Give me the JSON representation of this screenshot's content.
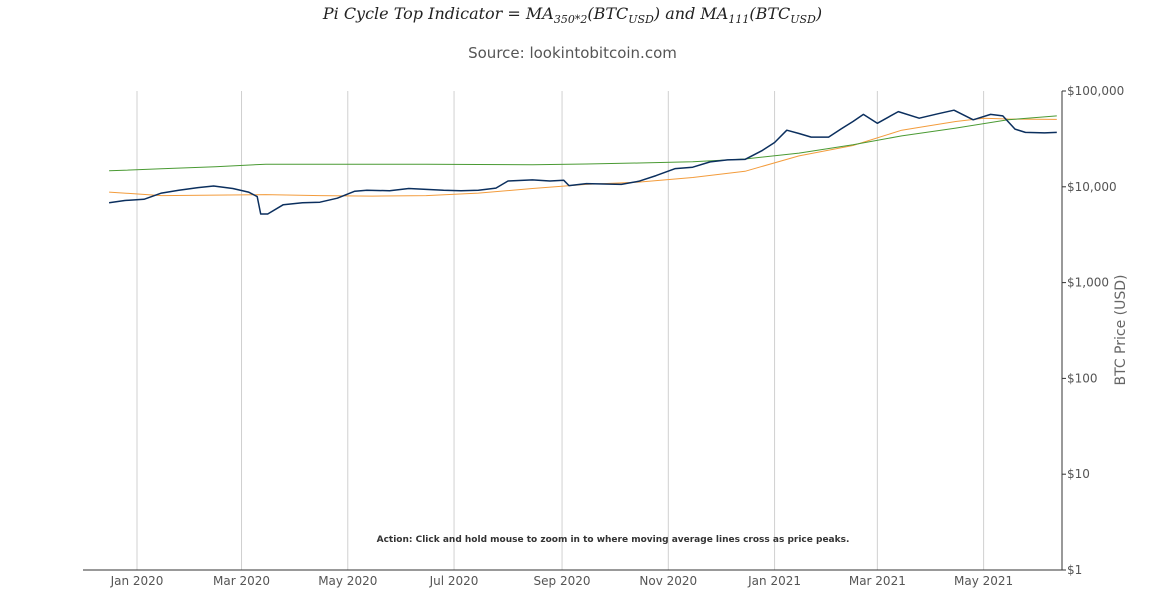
{
  "header": {
    "title_prefix": "Pi Cycle Top Indicator = MA",
    "title_sub1": "350*2",
    "title_mid1": "(BTC",
    "title_sub2": "USD",
    "title_mid2": ") and MA",
    "title_sub3": "111",
    "title_mid3": "(BTC",
    "title_sub4": "USD",
    "title_suffix": ")",
    "subtitle": "Source: lookintobitcoin.com"
  },
  "chart_data": {
    "type": "line",
    "ylabel": "BTC Price (USD)",
    "yscale": "log",
    "ylim": [
      1,
      100000
    ],
    "ytick_values": [
      1,
      10,
      100,
      1000,
      10000,
      100000
    ],
    "ytick_labels": [
      "$1",
      "$10",
      "$100",
      "$1,000",
      "$10,000",
      "$100,000"
    ],
    "xlim": [
      "2019-12-01",
      "2021-06-15"
    ],
    "xtick_dates": [
      "2020-01-01",
      "2020-03-01",
      "2020-05-01",
      "2020-07-01",
      "2020-09-01",
      "2020-11-01",
      "2021-01-01",
      "2021-03-01",
      "2021-05-01"
    ],
    "xtick_labels": [
      "Jan 2020",
      "Mar 2020",
      "May 2020",
      "Jul 2020",
      "Sep 2020",
      "Nov 2020",
      "Jan 2021",
      "Mar 2021",
      "May 2021"
    ],
    "grid": "vertical",
    "annotation": "Action: Click and hold mouse to zoom in to where moving average lines cross as price peaks.",
    "series": [
      {
        "color": "#0b2f5e",
        "x": [
          "2019-12-16",
          "2019-12-25",
          "2020-01-05",
          "2020-01-15",
          "2020-01-25",
          "2020-02-05",
          "2020-02-14",
          "2020-02-25",
          "2020-03-05",
          "2020-03-10",
          "2020-03-12",
          "2020-03-16",
          "2020-03-25",
          "2020-04-05",
          "2020-04-15",
          "2020-04-25",
          "2020-05-05",
          "2020-05-12",
          "2020-05-25",
          "2020-06-05",
          "2020-06-15",
          "2020-06-25",
          "2020-07-05",
          "2020-07-15",
          "2020-07-25",
          "2020-08-01",
          "2020-08-15",
          "2020-08-25",
          "2020-09-02",
          "2020-09-05",
          "2020-09-15",
          "2020-09-25",
          "2020-10-05",
          "2020-10-15",
          "2020-10-25",
          "2020-11-05",
          "2020-11-15",
          "2020-11-25",
          "2020-12-05",
          "2020-12-15",
          "2020-12-25",
          "2021-01-01",
          "2021-01-08",
          "2021-01-15",
          "2021-01-22",
          "2021-02-01",
          "2021-02-08",
          "2021-02-15",
          "2021-02-21",
          "2021-03-01",
          "2021-03-13",
          "2021-03-25",
          "2021-04-05",
          "2021-04-14",
          "2021-04-25",
          "2021-05-05",
          "2021-05-12",
          "2021-05-19",
          "2021-05-25",
          "2021-06-05",
          "2021-06-12"
        ],
        "values": [
          6800,
          7200,
          7400,
          8600,
          9200,
          9800,
          10200,
          9600,
          8800,
          7900,
          5200,
          5200,
          6500,
          6800,
          6900,
          7600,
          9000,
          9200,
          9100,
          9600,
          9400,
          9200,
          9100,
          9200,
          9700,
          11500,
          11800,
          11500,
          11700,
          10300,
          10800,
          10700,
          10600,
          11400,
          13100,
          15500,
          16000,
          18200,
          19100,
          19300,
          24000,
          29000,
          39000,
          36000,
          33000,
          33000,
          40000,
          48000,
          57000,
          46000,
          61000,
          52000,
          58000,
          63000,
          50000,
          57000,
          55000,
          40000,
          37000,
          36500,
          37000
        ]
      },
      {
        "color": "#f39c3c",
        "x": [
          "2019-12-16",
          "2020-01-15",
          "2020-02-15",
          "2020-03-15",
          "2020-04-15",
          "2020-05-15",
          "2020-06-15",
          "2020-07-15",
          "2020-08-15",
          "2020-09-15",
          "2020-10-15",
          "2020-11-15",
          "2020-12-15",
          "2021-01-15",
          "2021-02-15",
          "2021-03-15",
          "2021-04-15",
          "2021-05-01",
          "2021-05-15",
          "2021-06-12"
        ],
        "values": [
          8800,
          8100,
          8200,
          8300,
          8100,
          8000,
          8100,
          8600,
          9600,
          10600,
          11200,
          12500,
          14500,
          21000,
          27000,
          39000,
          48000,
          52000,
          51000,
          50500
        ]
      },
      {
        "color": "#4a9a33",
        "x": [
          "2019-12-16",
          "2020-01-15",
          "2020-02-15",
          "2020-03-15",
          "2020-04-15",
          "2020-05-15",
          "2020-06-15",
          "2020-07-15",
          "2020-08-15",
          "2020-09-15",
          "2020-10-15",
          "2020-11-15",
          "2020-12-15",
          "2021-01-15",
          "2021-02-15",
          "2021-03-15",
          "2021-04-15",
          "2021-05-15",
          "2021-06-12"
        ],
        "values": [
          14700,
          15400,
          16200,
          17200,
          17200,
          17200,
          17200,
          17100,
          17000,
          17300,
          17700,
          18300,
          19500,
          22500,
          27500,
          34000,
          41000,
          50000,
          55000
        ]
      }
    ]
  }
}
